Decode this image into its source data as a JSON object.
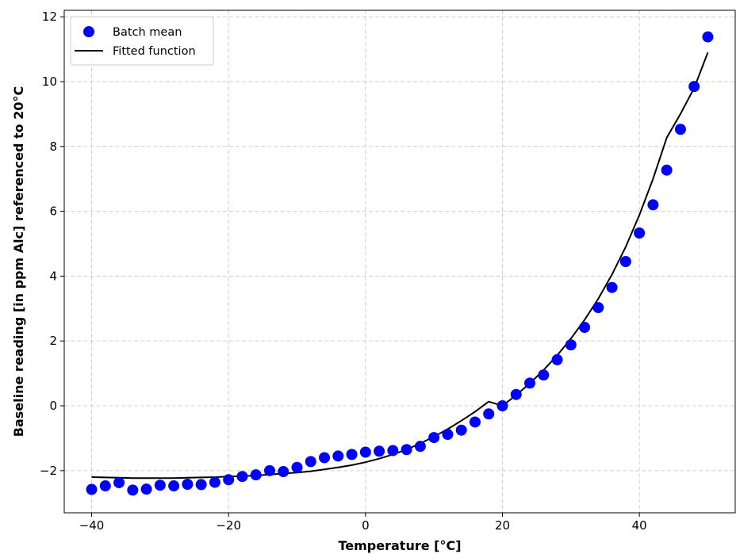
{
  "chart_data": {
    "type": "scatter",
    "title": "",
    "xlabel": "Temperature [°C]",
    "ylabel": "Baseline reading [in ppm Alc] referenced to 20°C",
    "xlim": [
      -44,
      54
    ],
    "ylim": [
      -3.3,
      12.2
    ],
    "xticks": [
      -40,
      -20,
      0,
      20,
      40
    ],
    "yticks": [
      -2,
      0,
      2,
      4,
      6,
      8,
      10,
      12
    ],
    "grid": true,
    "legend_position": "top-left",
    "series": [
      {
        "name": "Batch mean",
        "kind": "scatter",
        "color": "#0000ff",
        "x": [
          -40,
          -38,
          -36,
          -34,
          -32,
          -30,
          -28,
          -26,
          -24,
          -22,
          -20,
          -18,
          -16,
          -14,
          -12,
          -10,
          -8,
          -6,
          -4,
          -2,
          0,
          2,
          4,
          6,
          8,
          10,
          12,
          14,
          16,
          18,
          20,
          22,
          24,
          26,
          28,
          30,
          32,
          34,
          36,
          38,
          40,
          42,
          44,
          46,
          48,
          50
        ],
        "y": [
          -2.58,
          -2.47,
          -2.37,
          -2.6,
          -2.57,
          -2.45,
          -2.47,
          -2.42,
          -2.43,
          -2.36,
          -2.28,
          -2.18,
          -2.13,
          -2.0,
          -2.03,
          -1.9,
          -1.72,
          -1.6,
          -1.55,
          -1.5,
          -1.43,
          -1.4,
          -1.38,
          -1.35,
          -1.25,
          -0.98,
          -0.88,
          -0.75,
          -0.5,
          -0.25,
          0.0,
          0.35,
          0.7,
          0.95,
          1.42,
          1.88,
          2.42,
          3.03,
          3.65,
          4.45,
          5.33,
          6.2,
          7.27,
          8.53,
          9.85,
          11.38
        ]
      },
      {
        "name": "Fitted function",
        "kind": "line",
        "color": "#000000",
        "x": [
          -40,
          -38,
          -36,
          -34,
          -32,
          -30,
          -28,
          -26,
          -24,
          -22,
          -20,
          -18,
          -16,
          -14,
          -12,
          -10,
          -8,
          -6,
          -4,
          -2,
          0,
          2,
          4,
          6,
          8,
          10,
          12,
          14,
          16,
          18,
          20,
          22,
          24,
          26,
          28,
          30,
          32,
          34,
          36,
          38,
          40,
          42,
          44,
          46,
          48,
          50
        ],
        "y": [
          -2.2,
          -2.21,
          -2.22,
          -2.23,
          -2.23,
          -2.23,
          -2.23,
          -2.22,
          -2.21,
          -2.2,
          -2.18,
          -2.17,
          -2.15,
          -2.12,
          -2.09,
          -2.06,
          -2.02,
          -1.96,
          -1.9,
          -1.83,
          -1.74,
          -1.63,
          -1.5,
          -1.35,
          -1.16,
          -0.95,
          -0.72,
          -0.46,
          -0.18,
          0.13,
          0.0,
          0.33,
          0.69,
          1.1,
          1.56,
          2.07,
          2.65,
          3.3,
          4.05,
          4.9,
          5.88,
          7.0,
          8.27,
          9.0,
          9.8,
          10.9
        ]
      }
    ]
  }
}
